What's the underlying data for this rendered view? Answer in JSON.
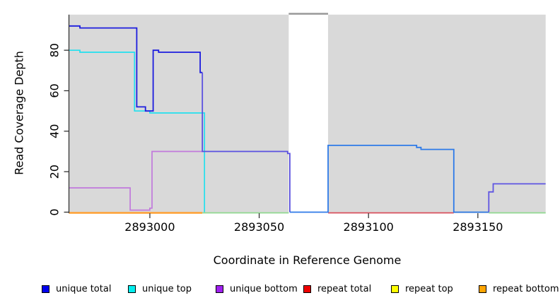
{
  "figure": {
    "background": "#FFFFFF",
    "plot_background": "#D9D9D9",
    "axis_color": "#333333",
    "masked_band_border": "#999999"
  },
  "chart_data": {
    "type": "line",
    "subtype": "step-coverage",
    "title": "",
    "xlabel": "Coordinate in Reference Genome",
    "ylabel": "Read Coverage Depth",
    "xlim": [
      2892963,
      2893181
    ],
    "ylim": [
      0,
      97.6
    ],
    "x_ticks": [
      2893000,
      2893050,
      2893100,
      2893150
    ],
    "y_ticks": [
      0,
      20,
      40,
      60,
      80
    ],
    "grid": false,
    "legend_position": "bottom",
    "masked_region": {
      "x0": 2893063.5,
      "x1": 2893081.5,
      "fill": "#FFFFFF",
      "top_border": "#999999"
    },
    "baseline_segments": [
      {
        "name": "repeat-bottom-zero",
        "color": "#FFA033",
        "width": 2.4,
        "x0": 2892963,
        "x1": 2893024,
        "y": 0
      },
      {
        "name": "green-zero-left",
        "color": "#8FD98F",
        "width": 1.8,
        "x0": 2893024,
        "x1": 2893063.5,
        "y": 0
      },
      {
        "name": "repeat-total-zero",
        "color": "#D94F5C",
        "width": 1.8,
        "x0": 2893081.5,
        "x1": 2893139,
        "y": 0
      },
      {
        "name": "green-zero-right",
        "color": "#8FD98F",
        "width": 1.8,
        "x0": 2893155,
        "x1": 2893181,
        "y": 0
      }
    ],
    "series": [
      {
        "name": "unique bottom",
        "segments": [
          {
            "color": "#C179DC",
            "width": 1.7,
            "points": [
              [
                2892963,
                12
              ],
              [
                2892991,
                12
              ],
              [
                2892991,
                1
              ],
              [
                2893000,
                1
              ],
              [
                2893000,
                2
              ],
              [
                2893001,
                2
              ],
              [
                2893001,
                30
              ],
              [
                2893024,
                30
              ]
            ]
          }
        ]
      },
      {
        "name": "unique top",
        "segments": [
          {
            "color": "#22E0EE",
            "width": 1.7,
            "points": [
              [
                2892963,
                80
              ],
              [
                2892968,
                80
              ],
              [
                2892968,
                79
              ],
              [
                2892993,
                79
              ],
              [
                2892993,
                50
              ],
              [
                2893000,
                50
              ],
              [
                2893000,
                49
              ],
              [
                2893025,
                49
              ],
              [
                2893025,
                0
              ]
            ]
          }
        ]
      },
      {
        "name": "unique total",
        "segments": [
          {
            "color": "#1C1CDE",
            "width": 1.8,
            "points": [
              [
                2892963,
                92
              ],
              [
                2892968,
                92
              ],
              [
                2892968,
                91
              ],
              [
                2892994,
                91
              ],
              [
                2892994,
                52
              ],
              [
                2892998,
                52
              ],
              [
                2892998,
                50
              ],
              [
                2893001.5,
                50
              ],
              [
                2893001.5,
                80
              ],
              [
                2893004,
                80
              ],
              [
                2893004,
                79
              ],
              [
                2893023,
                79
              ],
              [
                2893023,
                69
              ],
              [
                2893024,
                69
              ]
            ]
          },
          {
            "color": "#5A50E0",
            "width": 1.8,
            "points": [
              [
                2893024,
                69
              ],
              [
                2893024,
                30
              ],
              [
                2893063,
                30
              ],
              [
                2893063,
                29
              ],
              [
                2893064,
                29
              ],
              [
                2893064,
                0
              ]
            ]
          },
          {
            "color": "#2D7AE8",
            "width": 1.8,
            "points": [
              [
                2893064,
                0
              ],
              [
                2893081.5,
                0
              ],
              [
                2893081.5,
                33
              ],
              [
                2893122,
                33
              ],
              [
                2893122,
                32
              ],
              [
                2893124,
                32
              ],
              [
                2893124,
                31
              ],
              [
                2893139,
                31
              ],
              [
                2893139,
                0
              ],
              [
                2893155,
                0
              ]
            ]
          },
          {
            "color": "#5F55E2",
            "width": 1.8,
            "points": [
              [
                2893155,
                0
              ],
              [
                2893155,
                10
              ],
              [
                2893157,
                10
              ],
              [
                2893157,
                14
              ],
              [
                2893181,
                14
              ]
            ]
          }
        ]
      }
    ]
  },
  "legend": {
    "items": [
      {
        "label": "unique total",
        "color": "#0000EE"
      },
      {
        "label": "unique top",
        "color": "#00EEEE"
      },
      {
        "label": "unique bottom",
        "color": "#A020F0"
      },
      {
        "label": "repeat total",
        "color": "#EE0000"
      },
      {
        "label": "repeat top",
        "color": "#FFFF00"
      },
      {
        "label": "repeat bottom",
        "color": "#FFA500"
      }
    ]
  }
}
